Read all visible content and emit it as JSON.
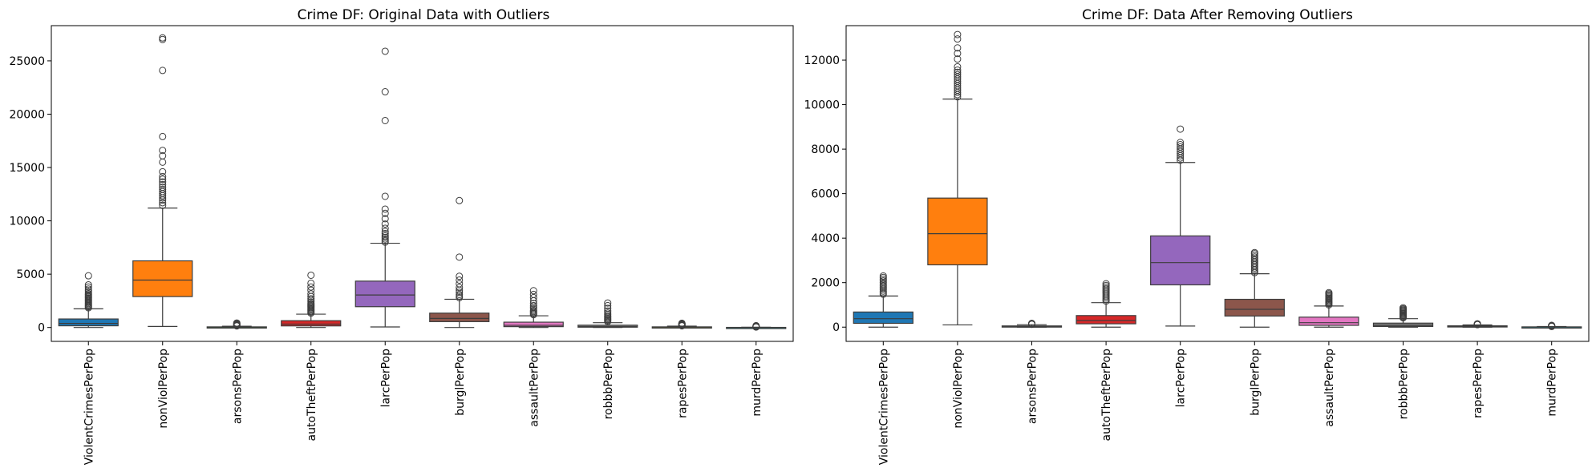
{
  "chart_data": [
    {
      "type": "box",
      "title": "Crime DF: Original Data with Outliers",
      "categories": [
        "ViolentCrimesPerPop",
        "nonViolPerPop",
        "arsonsPerPop",
        "autoTheftPerPop",
        "larcPerPop",
        "burglPerPop",
        "assaultPerPop",
        "robbbPerPop",
        "rapesPerPop",
        "murdPerPop"
      ],
      "yticks": [
        0,
        5000,
        10000,
        15000,
        20000,
        25000
      ],
      "ylim": [
        -1300,
        28300
      ],
      "grid": false,
      "boxes": [
        {
          "name": "ViolentCrimesPerPop",
          "color": "#1f77b4",
          "q1": 160,
          "median": 380,
          "q3": 800,
          "whisker_low": 0,
          "whisker_high": 1750,
          "outliers": [
            1850,
            1950,
            2050,
            2150,
            2250,
            2350,
            2450,
            2550,
            2650,
            2750,
            2850,
            2950,
            3050,
            3150,
            3300,
            3450,
            3600,
            3800,
            4000,
            4850
          ]
        },
        {
          "name": "nonViolPerPop",
          "color": "#ff7f0e",
          "q1": 2900,
          "median": 4450,
          "q3": 6250,
          "whisker_low": 100,
          "whisker_high": 11200,
          "outliers": [
            11450,
            11700,
            11950,
            12150,
            12350,
            12550,
            12750,
            12950,
            13150,
            13400,
            13650,
            13900,
            14150,
            14600,
            15500,
            16100,
            16600,
            17900,
            24100,
            27000,
            27150
          ]
        },
        {
          "name": "arsonsPerPop",
          "color": "#2ca02c",
          "q1": 10,
          "median": 30,
          "q3": 60,
          "whisker_low": 0,
          "whisker_high": 120,
          "outliers": [
            150,
            190,
            240,
            290,
            350,
            420
          ]
        },
        {
          "name": "autoTheftPerPop",
          "color": "#d62728",
          "q1": 150,
          "median": 320,
          "q3": 640,
          "whisker_low": 0,
          "whisker_high": 1250,
          "outliers": [
            1350,
            1450,
            1550,
            1650,
            1750,
            1850,
            1950,
            2050,
            2150,
            2250,
            2400,
            2550,
            2700,
            2900,
            3150,
            3500,
            3800,
            4150,
            4900
          ]
        },
        {
          "name": "larcPerPop",
          "color": "#9467bd",
          "q1": 1950,
          "median": 3050,
          "q3": 4350,
          "whisker_low": 50,
          "whisker_high": 7900,
          "outliers": [
            8000,
            8150,
            8300,
            8450,
            8600,
            8800,
            9000,
            9300,
            9700,
            10200,
            10700,
            11100,
            12300,
            19400,
            22100,
            25900
          ]
        },
        {
          "name": "burglPerPop",
          "color": "#8c564b",
          "q1": 550,
          "median": 850,
          "q3": 1350,
          "whisker_low": 0,
          "whisker_high": 2650,
          "outliers": [
            2800,
            2950,
            3100,
            3300,
            3500,
            3750,
            4100,
            4450,
            4800,
            6600,
            11900
          ]
        },
        {
          "name": "assaultPerPop",
          "color": "#e377c2",
          "q1": 80,
          "median": 200,
          "q3": 500,
          "whisker_low": 0,
          "whisker_high": 1100,
          "outliers": [
            1200,
            1300,
            1400,
            1500,
            1600,
            1750,
            1900,
            2050,
            2250,
            2500,
            2800,
            3100,
            3450
          ]
        },
        {
          "name": "robbbPerPop",
          "color": "#7f7f7f",
          "q1": 30,
          "median": 80,
          "q3": 220,
          "whisker_low": 0,
          "whisker_high": 450,
          "outliers": [
            550,
            650,
            750,
            850,
            950,
            1050,
            1200,
            1350,
            1550,
            1800,
            2050,
            2300
          ]
        },
        {
          "name": "rapesPerPop",
          "color": "#bcbd22",
          "q1": 15,
          "median": 35,
          "q3": 60,
          "whisker_low": 0,
          "whisker_high": 130,
          "outliers": [
            160,
            200,
            250,
            300,
            350,
            400
          ]
        },
        {
          "name": "murdPerPop",
          "color": "#17becf",
          "q1": 0,
          "median": 5,
          "q3": 12,
          "whisker_low": 0,
          "whisker_high": 30,
          "outliers": [
            45,
            60,
            80,
            100,
            130,
            170
          ]
        }
      ]
    },
    {
      "type": "box",
      "title": "Crime DF: Data After Removing Outliers",
      "categories": [
        "ViolentCrimesPerPop",
        "nonViolPerPop",
        "arsonsPerPop",
        "autoTheftPerPop",
        "larcPerPop",
        "burglPerPop",
        "assaultPerPop",
        "robbbPerPop",
        "rapesPerPop",
        "murdPerPop"
      ],
      "yticks": [
        0,
        2000,
        4000,
        6000,
        8000,
        10000,
        12000
      ],
      "ylim": [
        -640,
        13550
      ],
      "grid": false,
      "boxes": [
        {
          "name": "ViolentCrimesPerPop",
          "color": "#1f77b4",
          "q1": 170,
          "median": 380,
          "q3": 680,
          "whisker_low": 0,
          "whisker_high": 1400,
          "outliers": [
            1480,
            1550,
            1620,
            1700,
            1780,
            1850,
            1920,
            2000,
            2080,
            2150,
            2230,
            2300
          ]
        },
        {
          "name": "nonViolPerPop",
          "color": "#ff7f0e",
          "q1": 2800,
          "median": 4200,
          "q3": 5800,
          "whisker_low": 100,
          "whisker_high": 10250,
          "outliers": [
            10350,
            10450,
            10550,
            10650,
            10750,
            10850,
            10950,
            11050,
            11150,
            11250,
            11350,
            11450,
            11550,
            11700,
            12050,
            12300,
            12550,
            12950,
            13150
          ]
        },
        {
          "name": "arsonsPerPop",
          "color": "#2ca02c",
          "q1": 10,
          "median": 28,
          "q3": 55,
          "whisker_low": 0,
          "whisker_high": 110,
          "outliers": [
            125,
            140,
            155,
            170
          ]
        },
        {
          "name": "autoTheftPerPop",
          "color": "#d62728",
          "q1": 150,
          "median": 300,
          "q3": 520,
          "whisker_low": 0,
          "whisker_high": 1100,
          "outliers": [
            1170,
            1240,
            1310,
            1380,
            1450,
            1520,
            1590,
            1660,
            1730,
            1800,
            1870,
            1950
          ]
        },
        {
          "name": "larcPerPop",
          "color": "#9467bd",
          "q1": 1900,
          "median": 2900,
          "q3": 4100,
          "whisker_low": 50,
          "whisker_high": 7400,
          "outliers": [
            7500,
            7600,
            7700,
            7800,
            7900,
            8000,
            8100,
            8200,
            8300,
            8900
          ]
        },
        {
          "name": "burglPerPop",
          "color": "#8c564b",
          "q1": 500,
          "median": 800,
          "q3": 1250,
          "whisker_low": 0,
          "whisker_high": 2400,
          "outliers": [
            2450,
            2520,
            2590,
            2660,
            2730,
            2800,
            2870,
            2940,
            3010,
            3080,
            3150,
            3220,
            3300,
            3350
          ]
        },
        {
          "name": "assaultPerPop",
          "color": "#e377c2",
          "q1": 80,
          "median": 200,
          "q3": 450,
          "whisker_low": 0,
          "whisker_high": 950,
          "outliers": [
            1000,
            1050,
            1100,
            1150,
            1200,
            1250,
            1300,
            1350,
            1400,
            1450,
            1500,
            1550
          ]
        },
        {
          "name": "robbbPerPop",
          "color": "#7f7f7f",
          "q1": 30,
          "median": 80,
          "q3": 180,
          "whisker_low": 0,
          "whisker_high": 380,
          "outliers": [
            420,
            460,
            500,
            540,
            580,
            620,
            660,
            700,
            740,
            780,
            820,
            870
          ]
        },
        {
          "name": "rapesPerPop",
          "color": "#bcbd22",
          "q1": 15,
          "median": 35,
          "q3": 60,
          "whisker_low": 0,
          "whisker_high": 100,
          "outliers": [
            110,
            120,
            130,
            140,
            150
          ]
        },
        {
          "name": "murdPerPop",
          "color": "#17becf",
          "q1": 0,
          "median": 5,
          "q3": 12,
          "whisker_low": 0,
          "whisker_high": 25,
          "outliers": [
            30,
            40,
            50,
            60,
            70,
            80
          ]
        }
      ]
    }
  ]
}
